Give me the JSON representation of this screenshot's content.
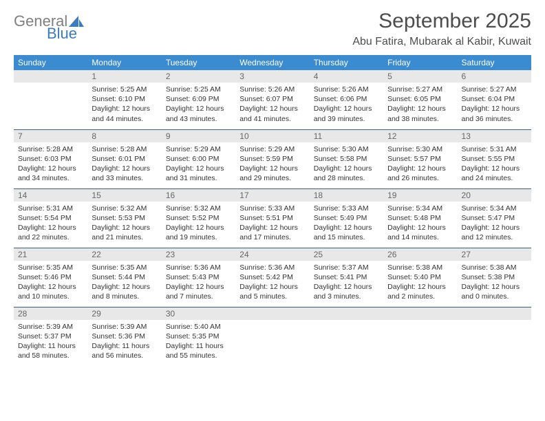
{
  "logo": {
    "text1": "General",
    "text2": "Blue"
  },
  "title": "September 2025",
  "location": "Abu Fatira, Mubarak al Kabir, Kuwait",
  "colors": {
    "header_bg": "#3b8bd0",
    "header_text": "#ffffff",
    "daynum_bg": "#e8e8e8",
    "daynum_text": "#666666",
    "cell_border": "#3b5e7a",
    "logo_gray": "#808080",
    "logo_blue": "#3b7cbf"
  },
  "weekdays": [
    "Sunday",
    "Monday",
    "Tuesday",
    "Wednesday",
    "Thursday",
    "Friday",
    "Saturday"
  ],
  "weeks": [
    [
      {
        "day": "",
        "sunrise": "",
        "sunset": "",
        "daylight": ""
      },
      {
        "day": "1",
        "sunrise": "5:25 AM",
        "sunset": "6:10 PM",
        "daylight": "12 hours and 44 minutes."
      },
      {
        "day": "2",
        "sunrise": "5:25 AM",
        "sunset": "6:09 PM",
        "daylight": "12 hours and 43 minutes."
      },
      {
        "day": "3",
        "sunrise": "5:26 AM",
        "sunset": "6:07 PM",
        "daylight": "12 hours and 41 minutes."
      },
      {
        "day": "4",
        "sunrise": "5:26 AM",
        "sunset": "6:06 PM",
        "daylight": "12 hours and 39 minutes."
      },
      {
        "day": "5",
        "sunrise": "5:27 AM",
        "sunset": "6:05 PM",
        "daylight": "12 hours and 38 minutes."
      },
      {
        "day": "6",
        "sunrise": "5:27 AM",
        "sunset": "6:04 PM",
        "daylight": "12 hours and 36 minutes."
      }
    ],
    [
      {
        "day": "7",
        "sunrise": "5:28 AM",
        "sunset": "6:03 PM",
        "daylight": "12 hours and 34 minutes."
      },
      {
        "day": "8",
        "sunrise": "5:28 AM",
        "sunset": "6:01 PM",
        "daylight": "12 hours and 33 minutes."
      },
      {
        "day": "9",
        "sunrise": "5:29 AM",
        "sunset": "6:00 PM",
        "daylight": "12 hours and 31 minutes."
      },
      {
        "day": "10",
        "sunrise": "5:29 AM",
        "sunset": "5:59 PM",
        "daylight": "12 hours and 29 minutes."
      },
      {
        "day": "11",
        "sunrise": "5:30 AM",
        "sunset": "5:58 PM",
        "daylight": "12 hours and 28 minutes."
      },
      {
        "day": "12",
        "sunrise": "5:30 AM",
        "sunset": "5:57 PM",
        "daylight": "12 hours and 26 minutes."
      },
      {
        "day": "13",
        "sunrise": "5:31 AM",
        "sunset": "5:55 PM",
        "daylight": "12 hours and 24 minutes."
      }
    ],
    [
      {
        "day": "14",
        "sunrise": "5:31 AM",
        "sunset": "5:54 PM",
        "daylight": "12 hours and 22 minutes."
      },
      {
        "day": "15",
        "sunrise": "5:32 AM",
        "sunset": "5:53 PM",
        "daylight": "12 hours and 21 minutes."
      },
      {
        "day": "16",
        "sunrise": "5:32 AM",
        "sunset": "5:52 PM",
        "daylight": "12 hours and 19 minutes."
      },
      {
        "day": "17",
        "sunrise": "5:33 AM",
        "sunset": "5:51 PM",
        "daylight": "12 hours and 17 minutes."
      },
      {
        "day": "18",
        "sunrise": "5:33 AM",
        "sunset": "5:49 PM",
        "daylight": "12 hours and 15 minutes."
      },
      {
        "day": "19",
        "sunrise": "5:34 AM",
        "sunset": "5:48 PM",
        "daylight": "12 hours and 14 minutes."
      },
      {
        "day": "20",
        "sunrise": "5:34 AM",
        "sunset": "5:47 PM",
        "daylight": "12 hours and 12 minutes."
      }
    ],
    [
      {
        "day": "21",
        "sunrise": "5:35 AM",
        "sunset": "5:46 PM",
        "daylight": "12 hours and 10 minutes."
      },
      {
        "day": "22",
        "sunrise": "5:35 AM",
        "sunset": "5:44 PM",
        "daylight": "12 hours and 8 minutes."
      },
      {
        "day": "23",
        "sunrise": "5:36 AM",
        "sunset": "5:43 PM",
        "daylight": "12 hours and 7 minutes."
      },
      {
        "day": "24",
        "sunrise": "5:36 AM",
        "sunset": "5:42 PM",
        "daylight": "12 hours and 5 minutes."
      },
      {
        "day": "25",
        "sunrise": "5:37 AM",
        "sunset": "5:41 PM",
        "daylight": "12 hours and 3 minutes."
      },
      {
        "day": "26",
        "sunrise": "5:38 AM",
        "sunset": "5:40 PM",
        "daylight": "12 hours and 2 minutes."
      },
      {
        "day": "27",
        "sunrise": "5:38 AM",
        "sunset": "5:38 PM",
        "daylight": "12 hours and 0 minutes."
      }
    ],
    [
      {
        "day": "28",
        "sunrise": "5:39 AM",
        "sunset": "5:37 PM",
        "daylight": "11 hours and 58 minutes."
      },
      {
        "day": "29",
        "sunrise": "5:39 AM",
        "sunset": "5:36 PM",
        "daylight": "11 hours and 56 minutes."
      },
      {
        "day": "30",
        "sunrise": "5:40 AM",
        "sunset": "5:35 PM",
        "daylight": "11 hours and 55 minutes."
      },
      {
        "day": "",
        "sunrise": "",
        "sunset": "",
        "daylight": ""
      },
      {
        "day": "",
        "sunrise": "",
        "sunset": "",
        "daylight": ""
      },
      {
        "day": "",
        "sunrise": "",
        "sunset": "",
        "daylight": ""
      },
      {
        "day": "",
        "sunrise": "",
        "sunset": "",
        "daylight": ""
      }
    ]
  ],
  "labels": {
    "sunrise": "Sunrise:",
    "sunset": "Sunset:",
    "daylight": "Daylight:"
  }
}
